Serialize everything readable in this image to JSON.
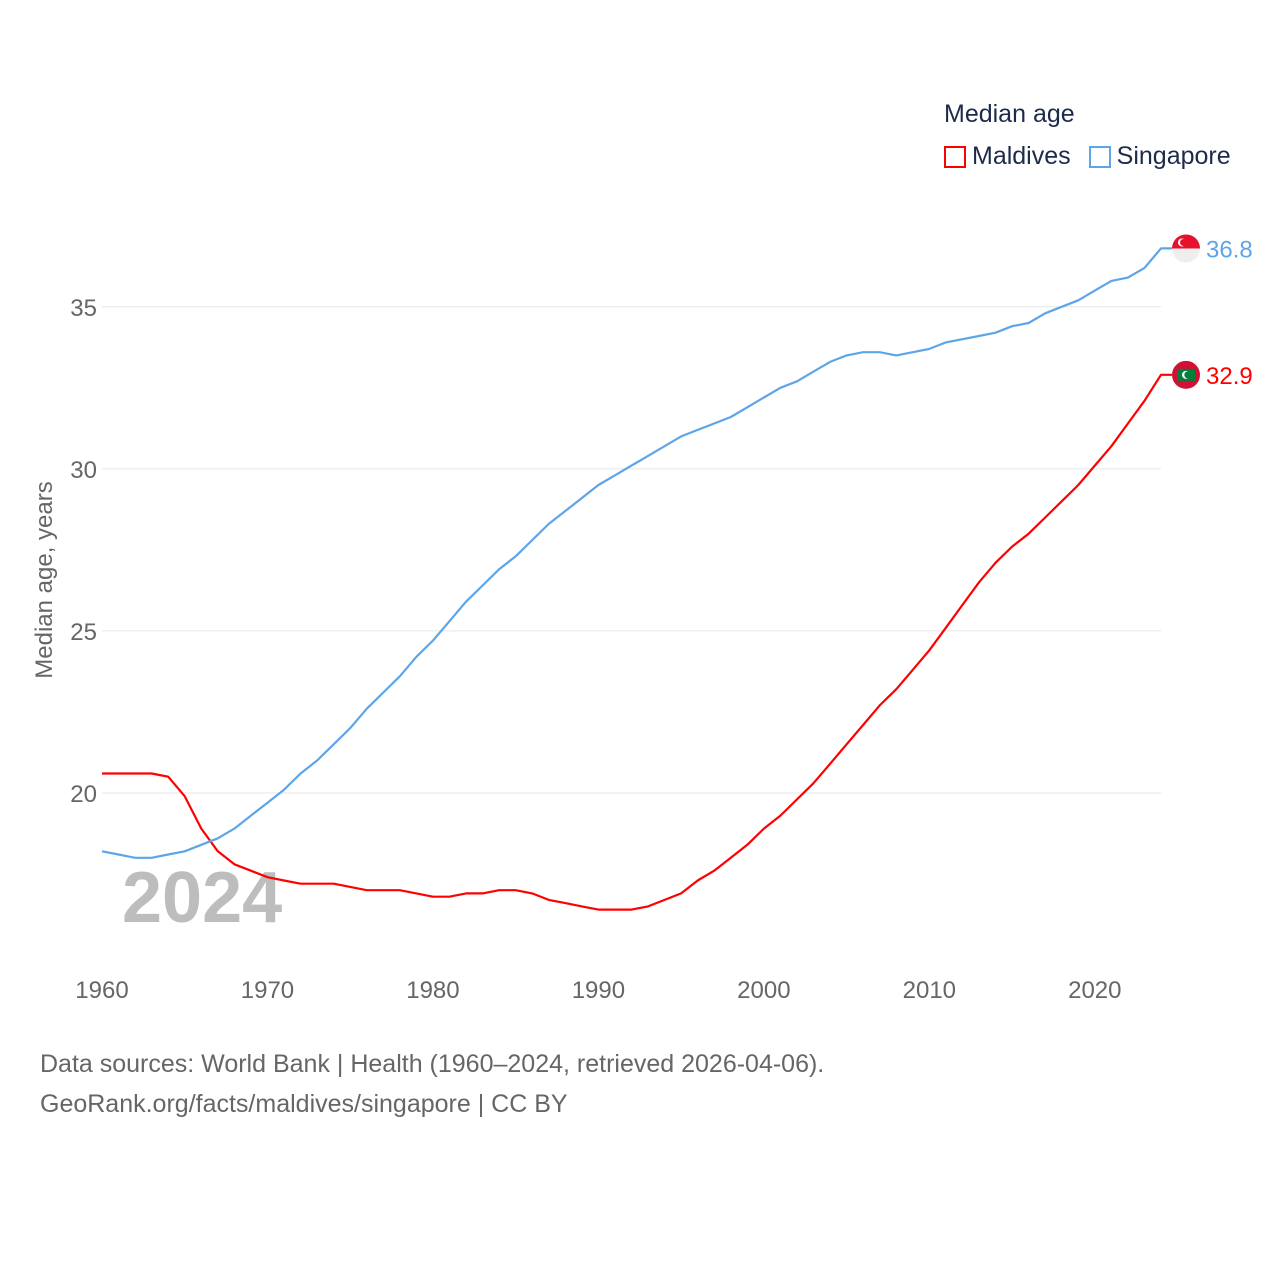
{
  "chart_data": {
    "type": "line",
    "title": "Median age",
    "xlabel": "",
    "ylabel": "Median age, years",
    "xlim": [
      1960,
      2024
    ],
    "ylim": [
      15,
      37.4
    ],
    "x_ticks": [
      1960,
      1970,
      1980,
      1990,
      2000,
      2010,
      2020
    ],
    "y_ticks": [
      20,
      25,
      30,
      35
    ],
    "grid": true,
    "legend_placement": "top-right",
    "watermark_year": "2024",
    "x": [
      1960,
      1961,
      1962,
      1963,
      1964,
      1965,
      1966,
      1967,
      1968,
      1969,
      1970,
      1971,
      1972,
      1973,
      1974,
      1975,
      1976,
      1977,
      1978,
      1979,
      1980,
      1981,
      1982,
      1983,
      1984,
      1985,
      1986,
      1987,
      1988,
      1989,
      1990,
      1991,
      1992,
      1993,
      1994,
      1995,
      1996,
      1997,
      1998,
      1999,
      2000,
      2001,
      2002,
      2003,
      2004,
      2005,
      2006,
      2007,
      2008,
      2009,
      2010,
      2011,
      2012,
      2013,
      2014,
      2015,
      2016,
      2017,
      2018,
      2019,
      2020,
      2021,
      2022,
      2023,
      2024
    ],
    "series": [
      {
        "name": "Maldives",
        "color": "#ff0000",
        "end_label": "32.9",
        "values": [
          20.6,
          20.6,
          20.6,
          20.6,
          20.5,
          19.9,
          18.9,
          18.2,
          17.8,
          17.6,
          17.4,
          17.3,
          17.2,
          17.2,
          17.2,
          17.1,
          17.0,
          17.0,
          17.0,
          16.9,
          16.8,
          16.8,
          16.9,
          16.9,
          17.0,
          17.0,
          16.9,
          16.7,
          16.6,
          16.5,
          16.4,
          16.4,
          16.4,
          16.5,
          16.7,
          16.9,
          17.3,
          17.6,
          18.0,
          18.4,
          18.9,
          19.3,
          19.8,
          20.3,
          20.9,
          21.5,
          22.1,
          22.7,
          23.2,
          23.8,
          24.4,
          25.1,
          25.8,
          26.5,
          27.1,
          27.6,
          28.0,
          28.5,
          29.0,
          29.5,
          30.1,
          30.7,
          31.4,
          32.1,
          32.9
        ]
      },
      {
        "name": "Singapore",
        "color": "#5da5e8",
        "end_label": "36.8",
        "values": [
          18.2,
          18.1,
          18.0,
          18.0,
          18.1,
          18.2,
          18.4,
          18.6,
          18.9,
          19.3,
          19.7,
          20.1,
          20.6,
          21.0,
          21.5,
          22.0,
          22.6,
          23.1,
          23.6,
          24.2,
          24.7,
          25.3,
          25.9,
          26.4,
          26.9,
          27.3,
          27.8,
          28.3,
          28.7,
          29.1,
          29.5,
          29.8,
          30.1,
          30.4,
          30.7,
          31.0,
          31.2,
          31.4,
          31.6,
          31.9,
          32.2,
          32.5,
          32.7,
          33.0,
          33.3,
          33.5,
          33.6,
          33.6,
          33.5,
          33.6,
          33.7,
          33.9,
          34.0,
          34.1,
          34.2,
          34.4,
          34.5,
          34.8,
          35.0,
          35.2,
          35.5,
          35.8,
          35.9,
          36.2,
          36.8
        ]
      }
    ]
  },
  "source": {
    "line1": "Data sources: World Bank | Health (1960–2024, retrieved 2026-04-06).",
    "line2": "GeoRank.org/facts/maldives/singapore | CC BY"
  }
}
